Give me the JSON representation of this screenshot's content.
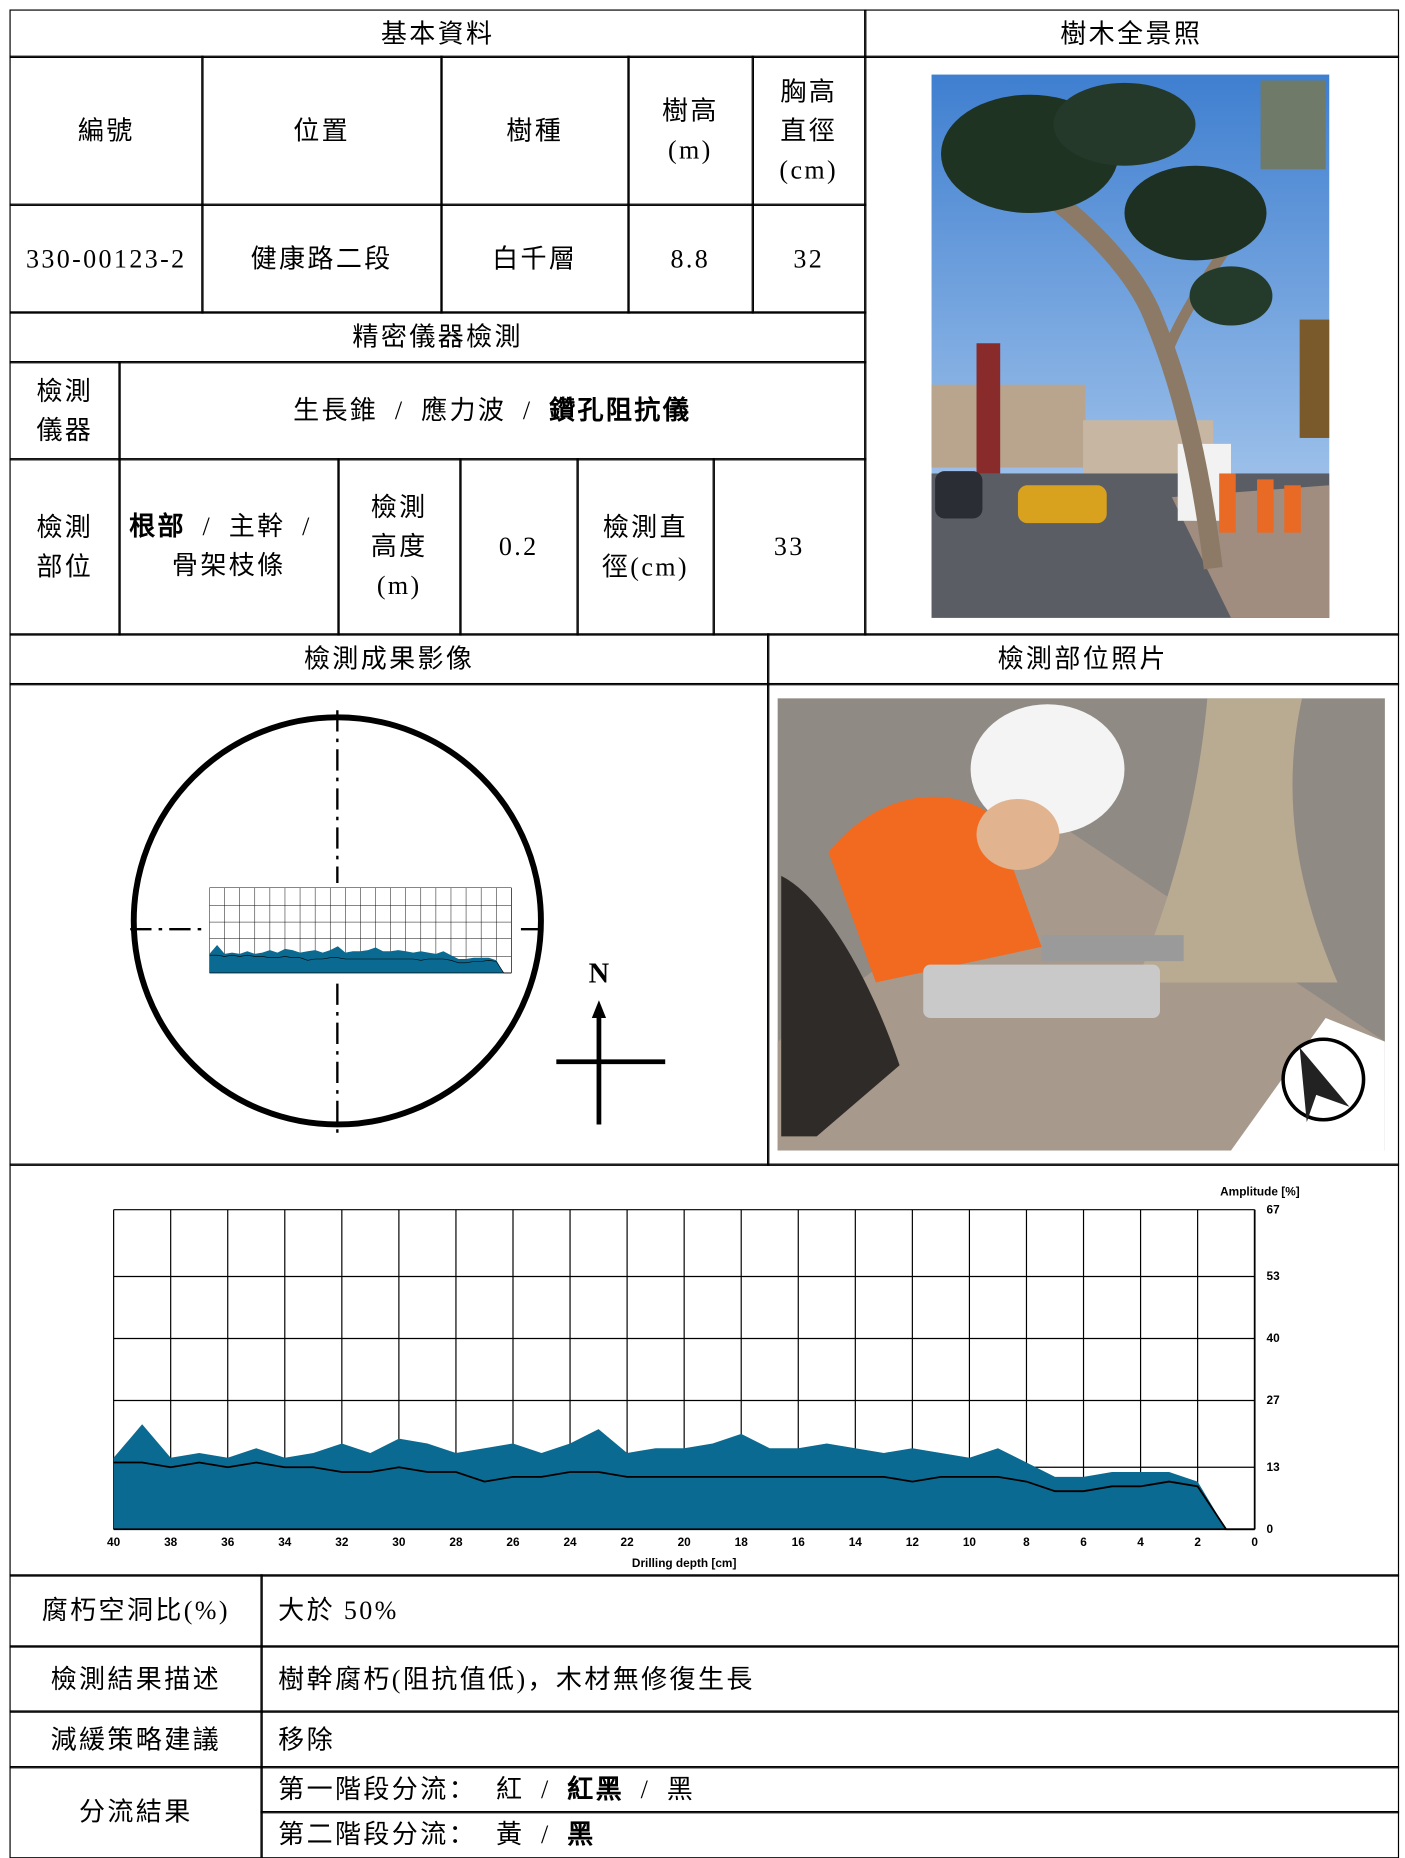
{
  "header": {
    "basic_title": "基本資料",
    "photo_title": "樹木全景照"
  },
  "basic": {
    "headers": [
      "編號",
      "位置",
      "樹種",
      "樹高\n(m)",
      "胸高\n直徑\n(cm)"
    ],
    "values": [
      "330-00123-2",
      "健康路二段",
      "白千層",
      8.8,
      32
    ]
  },
  "instrument": {
    "title": "精密儀器檢測",
    "label": "檢測\n儀器",
    "separator": "/",
    "options": [
      {
        "text": "生長錐",
        "bold": false
      },
      {
        "text": "應力波",
        "bold": false
      },
      {
        "text": "鑽孔阻抗儀",
        "bold": true
      }
    ]
  },
  "position": {
    "label": "檢測\n部位",
    "options": [
      {
        "text": "根部",
        "bold": true
      },
      {
        "text": "主幹",
        "bold": false
      },
      {
        "text": "骨架枝條",
        "bold": false
      }
    ],
    "height_label": "檢測\n高度\n(m)",
    "height": 0.2,
    "diameter_label": "檢測直\n徑(cm)",
    "diameter": 33
  },
  "results": {
    "image_title": "檢測成果影像",
    "photo_title": "檢測部位照片",
    "north": "N"
  },
  "chart_data": {
    "type": "area",
    "y_label": "Amplitude [%]",
    "x_label": "Drilling depth [cm]",
    "x": [
      40,
      39,
      38,
      37,
      36,
      35,
      34,
      33,
      32,
      31,
      30,
      29,
      28,
      27,
      26,
      25,
      24,
      23,
      22,
      21,
      20,
      19,
      18,
      17,
      16,
      15,
      14,
      13,
      12,
      11,
      10,
      9,
      8,
      7,
      6,
      5,
      4,
      3,
      2,
      1,
      0
    ],
    "series": [
      {
        "color": "#0b6a91",
        "values": [
          15,
          22,
          15,
          16,
          15,
          17,
          15,
          16,
          18,
          16,
          19,
          18,
          16,
          17,
          18,
          16,
          18,
          21,
          16,
          17,
          17,
          18,
          20,
          17,
          17,
          18,
          17,
          16,
          17,
          16,
          15,
          17,
          14,
          11,
          11,
          12,
          12,
          12,
          10,
          0,
          0
        ]
      },
      {
        "color": "#000000",
        "values": [
          14,
          14,
          13,
          14,
          13,
          14,
          13,
          13,
          12,
          12,
          13,
          12,
          12,
          10,
          11,
          11,
          12,
          12,
          11,
          11,
          11,
          11,
          11,
          11,
          11,
          11,
          11,
          11,
          10,
          11,
          11,
          11,
          10,
          8,
          8,
          9,
          9,
          10,
          9,
          0,
          0
        ]
      }
    ],
    "xlim": [
      40,
      0
    ],
    "xticks": [
      40,
      38,
      36,
      34,
      32,
      30,
      28,
      26,
      24,
      22,
      20,
      18,
      16,
      14,
      12,
      10,
      8,
      6,
      4,
      2,
      0
    ],
    "ylim": [
      0,
      67
    ],
    "yticks": [
      0,
      13,
      27,
      40,
      53,
      67
    ],
    "grid": true
  },
  "summary": {
    "rows": [
      [
        "腐朽空洞比(%)",
        "大於 50%"
      ],
      [
        "檢測結果描述",
        "樹幹腐朽(阻抗值低)，木材無修復生長"
      ],
      [
        "減緩策略建議",
        "移除"
      ]
    ]
  },
  "classification": {
    "label": "分流結果",
    "stages": [
      {
        "name": "第一階段分流：",
        "options": [
          {
            "text": "紅",
            "bold": false
          },
          {
            "text": "紅黑",
            "bold": true
          },
          {
            "text": "黑",
            "bold": false
          }
        ]
      },
      {
        "name": "第二階段分流：",
        "options": [
          {
            "text": "黃",
            "bold": false
          },
          {
            "text": "黑",
            "bold": true
          }
        ]
      }
    ]
  }
}
